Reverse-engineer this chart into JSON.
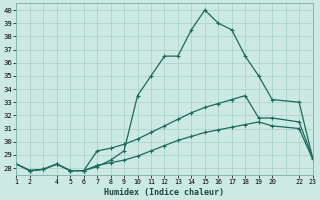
{
  "xlabel": "Humidex (Indice chaleur)",
  "ylabel": "",
  "background_color": "#cce9e3",
  "grid_color": "#a8cfc8",
  "line_color": "#1a6b5a",
  "xlim": [
    1,
    23
  ],
  "ylim": [
    27.5,
    40.5
  ],
  "yticks": [
    28,
    29,
    30,
    31,
    32,
    33,
    34,
    35,
    36,
    37,
    38,
    39,
    40
  ],
  "xtick_positions": [
    1,
    2,
    4,
    5,
    6,
    7,
    8,
    9,
    10,
    11,
    12,
    13,
    14,
    15,
    16,
    17,
    18,
    19,
    20,
    22,
    23
  ],
  "xtick_labels": [
    "1",
    "2",
    "4",
    "5",
    "6",
    "7",
    "8",
    "9",
    "10",
    "11",
    "12",
    "13",
    "14",
    "15",
    "16",
    "17",
    "18",
    "19",
    "20",
    "22",
    "23"
  ],
  "curve1_x": [
    1,
    2,
    3,
    4,
    5,
    6,
    7,
    8,
    9,
    10,
    11,
    12,
    13,
    14,
    15,
    16,
    17,
    18,
    19,
    20,
    22,
    23
  ],
  "curve1_y": [
    28.3,
    27.8,
    27.9,
    28.3,
    27.8,
    27.8,
    28.1,
    28.6,
    29.3,
    33.5,
    35.0,
    36.5,
    36.5,
    38.5,
    40.0,
    39.0,
    38.5,
    36.5,
    35.0,
    33.2,
    33.0,
    28.8
  ],
  "curve2_x": [
    1,
    2,
    3,
    4,
    5,
    6,
    7,
    8,
    9,
    10,
    11,
    12,
    13,
    14,
    15,
    16,
    17,
    18,
    19,
    20,
    22,
    23
  ],
  "curve2_y": [
    28.3,
    27.8,
    27.9,
    28.3,
    27.8,
    27.8,
    29.3,
    29.5,
    29.8,
    30.2,
    30.7,
    31.2,
    31.7,
    32.2,
    32.6,
    32.9,
    33.2,
    33.5,
    31.8,
    31.8,
    31.5,
    28.8
  ],
  "curve3_x": [
    1,
    2,
    3,
    4,
    5,
    6,
    7,
    8,
    9,
    10,
    11,
    12,
    13,
    14,
    15,
    16,
    17,
    18,
    19,
    20,
    22,
    23
  ],
  "curve3_y": [
    28.3,
    27.8,
    27.9,
    28.3,
    27.8,
    27.8,
    28.2,
    28.4,
    28.6,
    28.9,
    29.3,
    29.7,
    30.1,
    30.4,
    30.7,
    30.9,
    31.1,
    31.3,
    31.5,
    31.2,
    31.0,
    28.7
  ]
}
